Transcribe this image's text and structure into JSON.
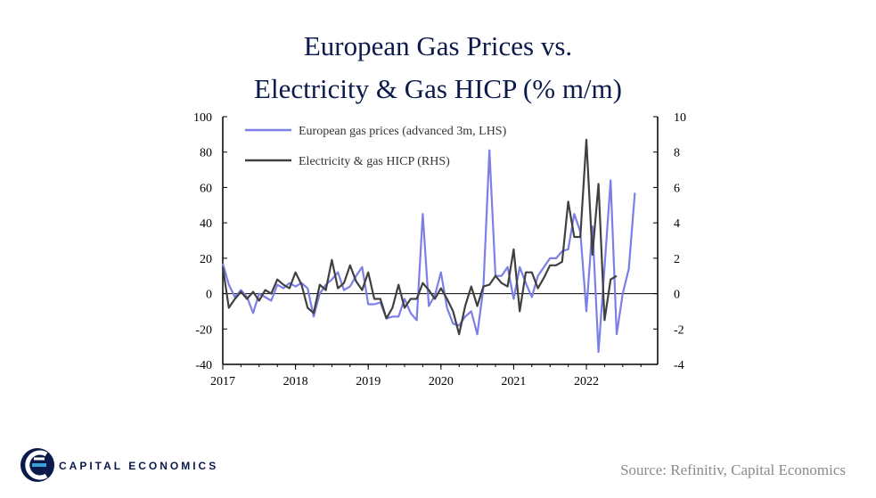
{
  "title_line1": "European Gas Prices vs.",
  "title_line2": "Electricity & Gas HICP (% m/m)",
  "source": "Source: Refinitiv, Capital Economics",
  "brand": "CAPITAL ECONOMICS",
  "colors": {
    "gas": "#7b7fe6",
    "hicp": "#404040",
    "title": "#0b1a4a"
  },
  "chart_data": {
    "type": "line",
    "x_ticks": [
      "2017",
      "2018",
      "2019",
      "2020",
      "2021",
      "2022"
    ],
    "xlim": [
      2017,
      2022.98
    ],
    "y_left": {
      "lim": [
        -40,
        100
      ],
      "ticks": [
        -40,
        -20,
        0,
        20,
        40,
        60,
        80,
        100
      ]
    },
    "y_right": {
      "lim": [
        -4,
        10
      ],
      "ticks": [
        -4,
        -2,
        0,
        2,
        4,
        6,
        8,
        10
      ]
    },
    "legend_position": "top-left",
    "series": [
      {
        "name": "European gas prices (advanced 3m, LHS)",
        "axis": "left",
        "start": 2017.0,
        "step_months": 1,
        "values": [
          17,
          5,
          -2,
          2,
          -2,
          -11,
          0,
          -2,
          -4,
          5,
          3,
          6,
          4,
          6,
          3,
          -13,
          0,
          5,
          8,
          12,
          2,
          4,
          10,
          15,
          -6,
          -6,
          -5,
          -14,
          -13,
          -13,
          -3,
          -11,
          -15,
          45,
          -7,
          -1,
          12,
          -8,
          -17,
          -18,
          -13,
          -10,
          -23,
          3,
          81,
          10,
          10,
          15,
          -3,
          15,
          6,
          -2,
          10,
          15,
          20,
          20,
          24,
          25,
          45,
          35,
          -10,
          38,
          -33,
          15,
          64,
          -23,
          0,
          14,
          57
        ]
      },
      {
        "name": "Electricity & gas HICP (RHS)",
        "axis": "right",
        "start": 2017.0,
        "step_months": 1,
        "values": [
          1.5,
          -0.8,
          -0.3,
          0.1,
          -0.3,
          0.1,
          -0.4,
          0.2,
          0.0,
          0.8,
          0.5,
          0.3,
          1.2,
          0.5,
          -0.8,
          -1.1,
          0.5,
          0.2,
          1.9,
          0.3,
          0.6,
          1.6,
          0.7,
          0.2,
          1.2,
          -0.3,
          -0.3,
          -1.4,
          -0.8,
          0.5,
          -0.8,
          -0.3,
          -0.3,
          0.6,
          0.2,
          -0.3,
          0.3,
          -0.3,
          -1.0,
          -2.3,
          -0.7,
          0.4,
          -0.7,
          0.4,
          0.5,
          1.0,
          0.6,
          0.4,
          2.5,
          -1.0,
          1.2,
          1.2,
          0.3,
          0.9,
          1.6,
          1.6,
          1.8,
          5.2,
          3.2,
          3.2,
          8.7,
          2.2,
          6.2,
          -1.5,
          0.8,
          1.0
        ]
      }
    ]
  }
}
